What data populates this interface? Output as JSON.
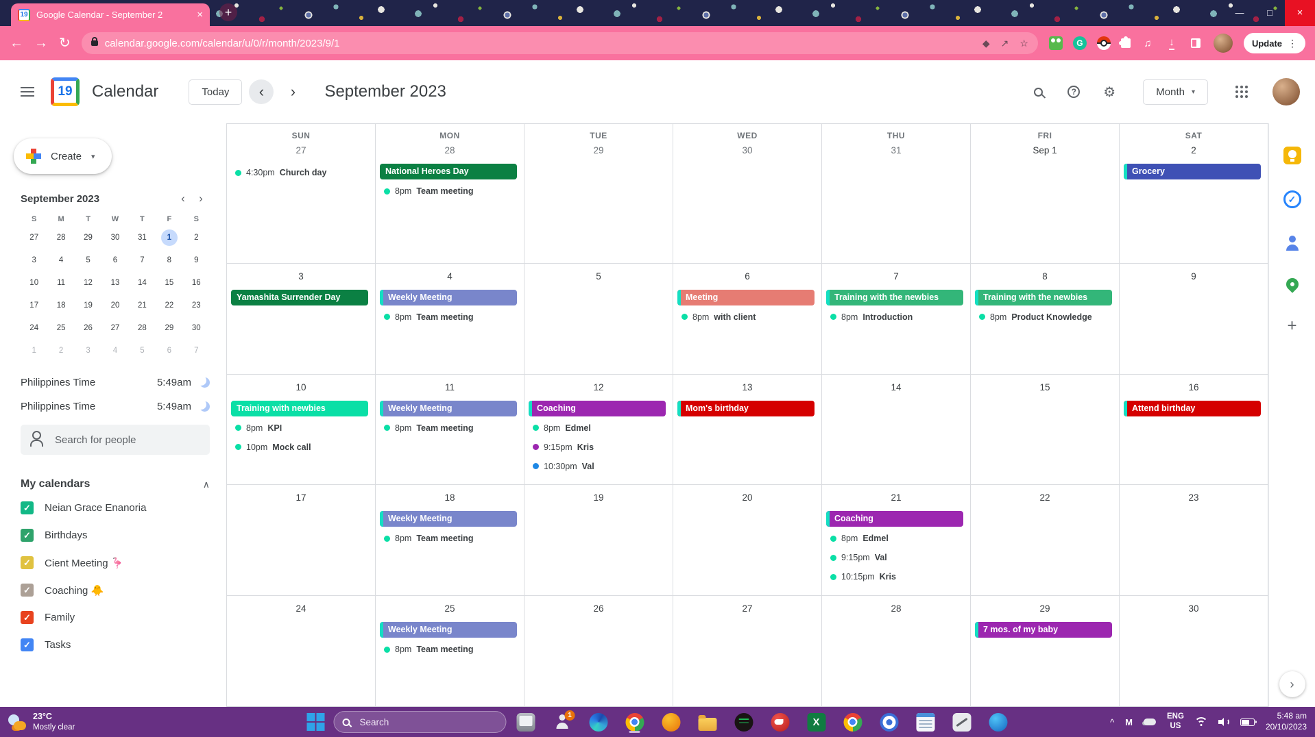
{
  "theme": {
    "toolbar_pink": "#F9719E",
    "toolbar_pink_light": "#FB8DAF",
    "tab_strip_navy": "#202449",
    "taskbar_purple": "#673083",
    "event_stripe_teal": "#14DFC2",
    "selected_day_blue": "#C6DAFC"
  },
  "icons": {
    "close": "×",
    "plus": "+",
    "minimize": "—",
    "maximize": "□",
    "back": "←",
    "forward": "→",
    "reload": "↻",
    "diamond": "◆",
    "share": "↗",
    "star": "☆",
    "music": "♫",
    "download": "↓",
    "kebab": "⋮",
    "dropdown": "▾",
    "chevron_left": "‹",
    "chevron_right": "›",
    "collapse": "∧",
    "help": "?",
    "gear": "⚙",
    "tray_chevron": "^",
    "monogram_m": "M",
    "check": "✓",
    "grammarly_g": "G",
    "excel_x": "X"
  },
  "browser": {
    "tab_title": "Google Calendar - September 2",
    "favicon_day": "19",
    "url": "calendar.google.com/calendar/u/0/r/month/2023/9/1",
    "update_label": "Update",
    "extensions": [
      {
        "name": "frog-extension-icon",
        "type": "frog"
      },
      {
        "name": "grammarly-icon",
        "type": "gram",
        "glyph": "G"
      },
      {
        "name": "pokeball-extension-icon",
        "type": "poke"
      },
      {
        "name": "puzzle-extensions-icon",
        "type": "puzzle"
      },
      {
        "name": "media-queue-icon",
        "type": "glyph",
        "glyph": "♫"
      },
      {
        "name": "downloads-icon",
        "type": "dl",
        "glyph": "↓"
      },
      {
        "name": "side-panel-icon",
        "type": "panelic"
      }
    ]
  },
  "header": {
    "app_name": "Calendar",
    "logo_day": "19",
    "today_label": "Today",
    "title": "September 2023",
    "view_label": "Month"
  },
  "sidebar": {
    "create_label": "Create",
    "mini_calendar": {
      "title": "September 2023",
      "day_headers": [
        "S",
        "M",
        "T",
        "W",
        "T",
        "F",
        "S"
      ],
      "selected_day": "1",
      "weeks": [
        [
          "27",
          "28",
          "29",
          "30",
          "31",
          "1",
          "2"
        ],
        [
          "3",
          "4",
          "5",
          "6",
          "7",
          "8",
          "9"
        ],
        [
          "10",
          "11",
          "12",
          "13",
          "14",
          "15",
          "16"
        ],
        [
          "17",
          "18",
          "19",
          "20",
          "21",
          "22",
          "23"
        ],
        [
          "24",
          "25",
          "26",
          "27",
          "28",
          "29",
          "30"
        ],
        [
          "1",
          "2",
          "3",
          "4",
          "5",
          "6",
          "7"
        ]
      ]
    },
    "clocks": [
      {
        "label": "Philippines Time",
        "time": "5:49am"
      },
      {
        "label": "Philippines Time",
        "time": "5:49am"
      }
    ],
    "search_people_placeholder": "Search for people",
    "my_calendars_label": "My calendars",
    "calendars": [
      {
        "name": "Neian Grace Enanoria",
        "color": "#12B886",
        "checked": true
      },
      {
        "name": "Birthdays",
        "color": "#2EA36B",
        "checked": true
      },
      {
        "name": "Cient Meeting 🦩",
        "color": "#E0C240",
        "checked": true
      },
      {
        "name": "Coaching 🐥",
        "color": "#ACA096",
        "checked": true
      },
      {
        "name": "Family",
        "color": "#E8431F",
        "checked": true
      },
      {
        "name": "Tasks",
        "color": "#4285F4",
        "checked": true
      }
    ]
  },
  "calendar": {
    "weekdays": [
      "SUN",
      "MON",
      "TUE",
      "WED",
      "THU",
      "FRI",
      "SAT"
    ],
    "weeks": [
      {
        "days": [
          {
            "num": "27",
            "muted": true,
            "events": [
              {
                "kind": "timed",
                "time": "4:30pm",
                "title": "Church day",
                "dot": "#0ADFA6"
              }
            ]
          },
          {
            "num": "28",
            "muted": true,
            "events": [
              {
                "kind": "banner",
                "title": "National Heroes Day",
                "color": "#0B8043",
                "stripe": false
              },
              {
                "kind": "timed",
                "time": "8pm",
                "title": "Team meeting",
                "dot": "#0ADFA6"
              }
            ]
          },
          {
            "num": "29",
            "muted": true,
            "events": []
          },
          {
            "num": "30",
            "muted": true,
            "events": []
          },
          {
            "num": "31",
            "muted": true,
            "events": []
          },
          {
            "num": "Sep 1",
            "muted": false,
            "events": []
          },
          {
            "num": "2",
            "muted": false,
            "events": [
              {
                "kind": "banner",
                "title": "Grocery",
                "color": "#3F51B5",
                "stripe": true
              }
            ]
          }
        ]
      },
      {
        "days": [
          {
            "num": "3",
            "muted": false,
            "events": [
              {
                "kind": "banner",
                "title": "Yamashita Surrender Day",
                "color": "#0B8043",
                "stripe": false
              }
            ]
          },
          {
            "num": "4",
            "muted": false,
            "events": [
              {
                "kind": "banner",
                "title": "Weekly Meeting",
                "color": "#7986CB",
                "stripe": true
              },
              {
                "kind": "timed",
                "time": "8pm",
                "title": "Team meeting",
                "dot": "#0ADFA6"
              }
            ]
          },
          {
            "num": "5",
            "muted": false,
            "events": []
          },
          {
            "num": "6",
            "muted": false,
            "events": [
              {
                "kind": "banner",
                "title": "Meeting",
                "color": "#E67C73",
                "stripe": true
              },
              {
                "kind": "timed",
                "time": "8pm",
                "title": "with client",
                "dot": "#0ADFA6"
              }
            ]
          },
          {
            "num": "7",
            "muted": false,
            "events": [
              {
                "kind": "banner",
                "title": "Training with the newbies",
                "color": "#33B679",
                "stripe": true
              },
              {
                "kind": "timed",
                "time": "8pm",
                "title": "Introduction",
                "dot": "#0ADFA6"
              }
            ]
          },
          {
            "num": "8",
            "muted": false,
            "events": [
              {
                "kind": "banner",
                "title": "Training with the newbies",
                "color": "#33B679",
                "stripe": true
              },
              {
                "kind": "timed",
                "time": "8pm",
                "title": "Product Knowledge",
                "dot": "#0ADFA6"
              }
            ]
          },
          {
            "num": "9",
            "muted": false,
            "events": []
          }
        ]
      },
      {
        "days": [
          {
            "num": "10",
            "muted": false,
            "events": [
              {
                "kind": "banner",
                "title": "Training with newbies",
                "color": "#0ADFA6",
                "stripe": false
              },
              {
                "kind": "timed",
                "time": "8pm",
                "title": "KPI",
                "dot": "#0ADFA6"
              },
              {
                "kind": "timed",
                "time": "10pm",
                "title": "Mock call",
                "dot": "#0ADFA6"
              }
            ]
          },
          {
            "num": "11",
            "muted": false,
            "events": [
              {
                "kind": "banner",
                "title": "Weekly Meeting",
                "color": "#7986CB",
                "stripe": true
              },
              {
                "kind": "timed",
                "time": "8pm",
                "title": "Team meeting",
                "dot": "#0ADFA6"
              }
            ]
          },
          {
            "num": "12",
            "muted": false,
            "events": [
              {
                "kind": "banner",
                "title": "Coaching",
                "color": "#9C27B0",
                "stripe": true
              },
              {
                "kind": "timed",
                "time": "8pm",
                "title": "Edmel",
                "dot": "#0ADFA6"
              },
              {
                "kind": "timed",
                "time": "9:15pm",
                "title": "Kris",
                "dot": "#9C27B0"
              },
              {
                "kind": "timed",
                "time": "10:30pm",
                "title": "Val",
                "dot": "#1E88E5"
              }
            ]
          },
          {
            "num": "13",
            "muted": false,
            "events": [
              {
                "kind": "banner",
                "title": "Mom's birthday",
                "color": "#D50000",
                "stripe": true
              }
            ]
          },
          {
            "num": "14",
            "muted": false,
            "events": []
          },
          {
            "num": "15",
            "muted": false,
            "events": []
          },
          {
            "num": "16",
            "muted": false,
            "events": [
              {
                "kind": "banner",
                "title": "Attend birthday",
                "color": "#D50000",
                "stripe": true
              }
            ]
          }
        ]
      },
      {
        "days": [
          {
            "num": "17",
            "muted": false,
            "events": []
          },
          {
            "num": "18",
            "muted": false,
            "events": [
              {
                "kind": "banner",
                "title": "Weekly Meeting",
                "color": "#7986CB",
                "stripe": true
              },
              {
                "kind": "timed",
                "time": "8pm",
                "title": "Team meeting",
                "dot": "#0ADFA6"
              }
            ]
          },
          {
            "num": "19",
            "muted": false,
            "events": []
          },
          {
            "num": "20",
            "muted": false,
            "events": []
          },
          {
            "num": "21",
            "muted": false,
            "events": [
              {
                "kind": "banner",
                "title": "Coaching",
                "color": "#9C27B0",
                "stripe": true
              },
              {
                "kind": "timed",
                "time": "8pm",
                "title": "Edmel",
                "dot": "#0ADFA6"
              },
              {
                "kind": "timed",
                "time": "9:15pm",
                "title": "Val",
                "dot": "#0ADFA6"
              },
              {
                "kind": "timed",
                "time": "10:15pm",
                "title": "Kris",
                "dot": "#0ADFA6"
              }
            ]
          },
          {
            "num": "22",
            "muted": false,
            "events": []
          },
          {
            "num": "23",
            "muted": false,
            "events": []
          }
        ]
      },
      {
        "days": [
          {
            "num": "24",
            "muted": false,
            "events": []
          },
          {
            "num": "25",
            "muted": false,
            "events": [
              {
                "kind": "banner",
                "title": "Weekly Meeting",
                "color": "#7986CB",
                "stripe": true
              },
              {
                "kind": "timed",
                "time": "8pm",
                "title": "Team meeting",
                "dot": "#0ADFA6"
              }
            ]
          },
          {
            "num": "26",
            "muted": false,
            "events": []
          },
          {
            "num": "27",
            "muted": false,
            "events": []
          },
          {
            "num": "28",
            "muted": false,
            "events": []
          },
          {
            "num": "29",
            "muted": false,
            "events": [
              {
                "kind": "banner",
                "title": "7 mos. of my baby",
                "color": "#9C27B0",
                "stripe": true
              }
            ]
          },
          {
            "num": "30",
            "muted": false,
            "events": []
          }
        ]
      }
    ]
  },
  "side_panel": {
    "icons": [
      {
        "name": "keep-icon",
        "type": "sp-keep"
      },
      {
        "name": "tasks-icon",
        "type": "sp-tasks",
        "glyph": "✓"
      },
      {
        "name": "contacts-icon",
        "type": "sp-contacts"
      },
      {
        "name": "maps-icon",
        "type": "sp-maps"
      },
      {
        "name": "get-addons-icon",
        "type": "sp-plus",
        "glyph": "+"
      }
    ]
  },
  "taskbar": {
    "weather": {
      "temp": "23°C",
      "condition": "Mostly clear"
    },
    "search_placeholder": "Search",
    "apps": [
      {
        "name": "task-view-icon",
        "type": "ic-task-view"
      },
      {
        "name": "chat-icon",
        "type": "ic-chat",
        "badge": "1"
      },
      {
        "name": "edge-icon",
        "type": "ic-edge"
      },
      {
        "name": "chrome-icon",
        "type": "ic-chrome",
        "active": true
      },
      {
        "name": "browser-profile-icon",
        "type": "ic-profile"
      },
      {
        "name": "file-explorer-icon",
        "type": "ic-folder"
      },
      {
        "name": "spotify-icon",
        "type": "ic-spotify"
      },
      {
        "name": "thunderbird-icon",
        "type": "ic-thunderbird"
      },
      {
        "name": "excel-icon",
        "type": "ic-excel",
        "glyph": "X"
      },
      {
        "name": "chrome-secondary-icon",
        "type": "ic-chrome"
      },
      {
        "name": "settings-icon",
        "type": "ic-settings"
      },
      {
        "name": "notepad-icon",
        "type": "ic-notepad"
      },
      {
        "name": "snipping-tool-icon",
        "type": "ic-snip"
      },
      {
        "name": "messenger-icon",
        "type": "ic-messenger"
      }
    ],
    "tray": {
      "language_top": "ENG",
      "language_bottom": "US",
      "time": "5:48 am",
      "date": "20/10/2023"
    }
  }
}
